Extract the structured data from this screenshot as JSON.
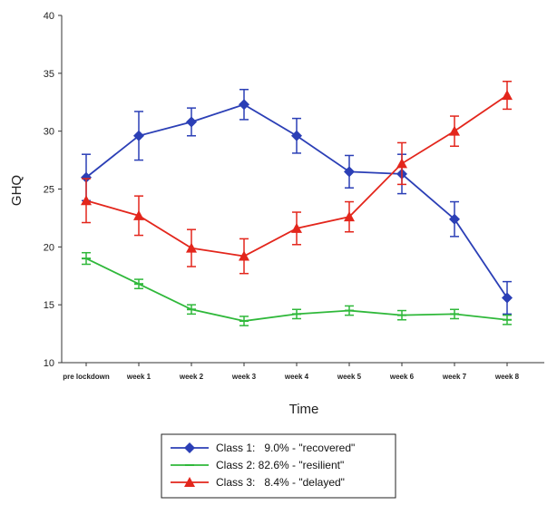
{
  "chart_data": {
    "type": "line",
    "title": "",
    "xlabel": "Time",
    "ylabel": "GHQ",
    "ylim": [
      10,
      40
    ],
    "yticks": [
      10,
      15,
      20,
      25,
      30,
      35,
      40
    ],
    "categories": [
      "pre lockdown",
      "week 1",
      "week 2",
      "week 3",
      "week 4",
      "week 5",
      "week 6",
      "week 7",
      "week 8"
    ],
    "grid": false,
    "legend_position": "bottom",
    "series": [
      {
        "name": "Class 1:   9.0% - \"recovered\"",
        "color": "#2b3fb6",
        "marker": "diamond",
        "values": [
          26.0,
          29.6,
          30.8,
          32.3,
          29.6,
          26.5,
          26.3,
          22.4,
          15.6
        ],
        "error": [
          2.0,
          2.1,
          1.2,
          1.3,
          1.5,
          1.4,
          1.7,
          1.5,
          1.4
        ]
      },
      {
        "name": "Class 2: 82.6% - \"resilient\"",
        "color": "#2fb83a",
        "marker": "dash",
        "values": [
          19.0,
          16.8,
          14.6,
          13.6,
          14.2,
          14.5,
          14.1,
          14.2,
          13.7
        ],
        "error": [
          0.5,
          0.4,
          0.4,
          0.4,
          0.4,
          0.4,
          0.4,
          0.4,
          0.4
        ]
      },
      {
        "name": "Class 3:   8.4% - \"delayed\"",
        "color": "#e3261c",
        "marker": "triangle",
        "values": [
          24.0,
          22.7,
          19.9,
          19.2,
          21.6,
          22.6,
          27.2,
          30.0,
          33.1
        ],
        "error": [
          1.9,
          1.7,
          1.6,
          1.5,
          1.4,
          1.3,
          1.8,
          1.3,
          1.2
        ]
      }
    ]
  }
}
